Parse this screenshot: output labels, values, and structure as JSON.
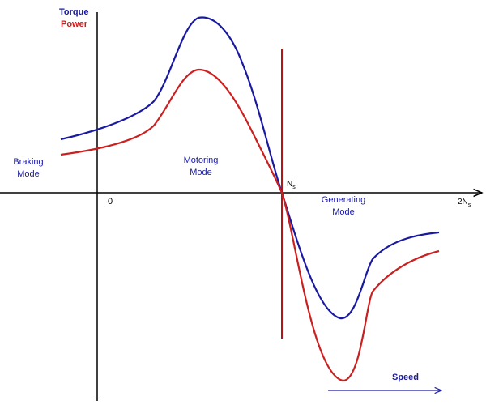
{
  "legend": {
    "torque": "Torque",
    "power": "Power"
  },
  "regions": [
    {
      "lines": [
        "Braking",
        "Mode"
      ]
    },
    {
      "lines": [
        "Motoring",
        "Mode"
      ]
    },
    {
      "lines": [
        "Generating",
        "Mode"
      ]
    }
  ],
  "axis": {
    "origin": "0",
    "sync": {
      "main": "N",
      "sub": "s"
    },
    "double": {
      "main": "2N",
      "sub": "s"
    },
    "speed": "Speed"
  }
}
